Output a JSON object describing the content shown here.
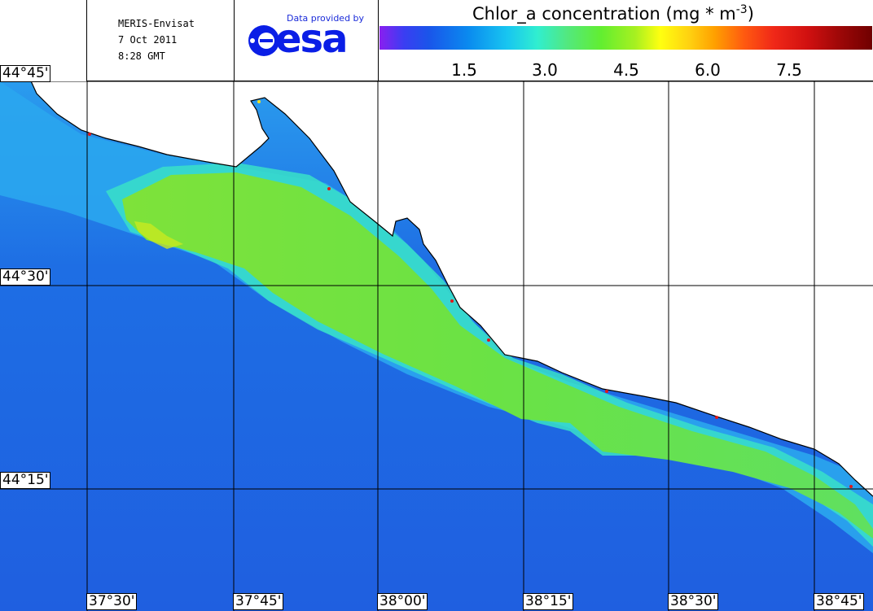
{
  "info": {
    "line1": "MERIS-Envisat",
    "line2": "7 Oct 2011",
    "line3": "8:28 GMT"
  },
  "logo": {
    "provided_by": "Data provided by",
    "word": "esa"
  },
  "legend": {
    "title": "Chlor_a concentration (mg * m",
    "title_sup": "-3",
    "title_close": ")",
    "ticks": [
      "1.5",
      "3.0",
      "4.5",
      "6.0",
      "7.5"
    ]
  },
  "lat_labels": [
    "44°45'",
    "44°30'",
    "44°15'"
  ],
  "lon_labels": [
    "37°30'",
    "37°45'",
    "38°00'",
    "38°15'",
    "38°30'",
    "38°45'"
  ],
  "colors": {
    "sea_low": "#1f5fe0",
    "sea_mid": "#2a9cee",
    "plume": "#6fe23a",
    "plume_edge": "#38e0c8",
    "land": "#ffffff",
    "high": "#e01818"
  }
}
